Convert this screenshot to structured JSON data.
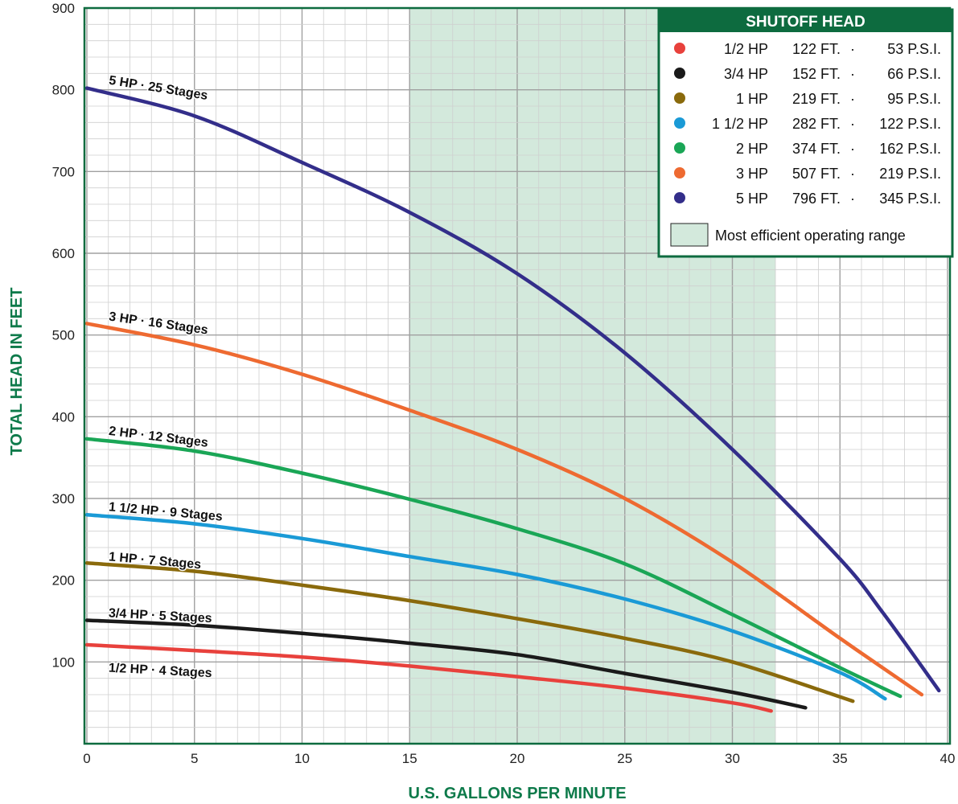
{
  "chart_data": {
    "type": "line",
    "xlabel": "U.S. GALLONS PER MINUTE",
    "ylabel": "TOTAL HEAD IN FEET",
    "xlim": [
      0,
      40
    ],
    "ylim": [
      0,
      900
    ],
    "xticks": [
      0,
      5,
      10,
      15,
      20,
      25,
      30,
      35,
      40
    ],
    "yticks": [
      100,
      200,
      300,
      400,
      500,
      600,
      700,
      800,
      900
    ],
    "grid": true,
    "efficient_range": {
      "x": [
        15,
        32
      ],
      "label": "Most efficient operating range",
      "color": "#d3e9dc"
    },
    "legend": {
      "title": "SHUTOFF HEAD",
      "placement": "top-right",
      "entries": [
        {
          "hp": "1/2 HP",
          "ft": "122 FT.",
          "sep": "·",
          "psi": "53 P.S.I.",
          "color": "#e8413c"
        },
        {
          "hp": "3/4 HP",
          "ft": "152 FT.",
          "sep": "·",
          "psi": "66 P.S.I.",
          "color": "#1a1a1a"
        },
        {
          "hp": "1 HP",
          "ft": "219 FT.",
          "sep": "·",
          "psi": "95 P.S.I.",
          "color": "#8a6a0c"
        },
        {
          "hp": "1 1/2 HP",
          "ft": "282 FT.",
          "sep": "·",
          "psi": "122 P.S.I.",
          "color": "#1a9ad6"
        },
        {
          "hp": "2 HP",
          "ft": "374 FT.",
          "sep": "·",
          "psi": "162 P.S.I.",
          "color": "#1aa656"
        },
        {
          "hp": "3 HP",
          "ft": "507 FT.",
          "sep": "·",
          "psi": "219 P.S.I.",
          "color": "#ee6a31"
        },
        {
          "hp": "5 HP",
          "ft": "796 FT.",
          "sep": "·",
          "psi": "345 P.S.I.",
          "color": "#332e8a"
        }
      ]
    },
    "series": [
      {
        "name": "1/2 HP · 4 Stages",
        "color": "#e8413c",
        "label_at": [
          1,
          88
        ],
        "label_angle": 3,
        "points": [
          [
            0,
            121
          ],
          [
            5,
            114
          ],
          [
            10,
            106
          ],
          [
            15,
            95
          ],
          [
            20,
            82
          ],
          [
            25,
            68
          ],
          [
            30,
            50
          ],
          [
            31.8,
            40
          ]
        ]
      },
      {
        "name": "3/4 HP · 5 Stages",
        "color": "#1a1a1a",
        "label_at": [
          1,
          155
        ],
        "label_angle": 3,
        "points": [
          [
            0,
            151
          ],
          [
            5,
            145
          ],
          [
            10,
            135
          ],
          [
            15,
            123
          ],
          [
            20,
            109
          ],
          [
            25,
            86
          ],
          [
            30,
            63
          ],
          [
            33.4,
            44
          ]
        ]
      },
      {
        "name": "1 HP · 7 Stages",
        "color": "#8a6a0c",
        "label_at": [
          1,
          224
        ],
        "label_angle": 5,
        "points": [
          [
            0,
            221
          ],
          [
            5,
            211
          ],
          [
            10,
            194
          ],
          [
            15,
            175
          ],
          [
            20,
            153
          ],
          [
            25,
            129
          ],
          [
            30,
            100
          ],
          [
            35.6,
            52
          ]
        ]
      },
      {
        "name": "1 1/2 HP · 9 Stages",
        "color": "#1a9ad6",
        "label_at": [
          1,
          285
        ],
        "label_angle": 5,
        "points": [
          [
            0,
            280
          ],
          [
            5,
            269
          ],
          [
            10,
            251
          ],
          [
            15,
            229
          ],
          [
            20,
            207
          ],
          [
            25,
            177
          ],
          [
            30,
            138
          ],
          [
            35,
            87
          ],
          [
            37.1,
            55
          ]
        ]
      },
      {
        "name": "2 HP · 12 Stages",
        "color": "#1aa656",
        "label_at": [
          1,
          378
        ],
        "label_angle": 7,
        "points": [
          [
            0,
            373
          ],
          [
            5,
            358
          ],
          [
            10,
            331
          ],
          [
            15,
            299
          ],
          [
            20,
            263
          ],
          [
            25,
            220
          ],
          [
            30,
            158
          ],
          [
            35,
            93
          ],
          [
            37.8,
            58
          ]
        ]
      },
      {
        "name": "3 HP · 16 Stages",
        "color": "#ee6a31",
        "label_at": [
          1,
          518
        ],
        "label_angle": 8,
        "points": [
          [
            0,
            514
          ],
          [
            5,
            488
          ],
          [
            10,
            452
          ],
          [
            15,
            408
          ],
          [
            20,
            360
          ],
          [
            25,
            300
          ],
          [
            30,
            222
          ],
          [
            35,
            129
          ],
          [
            38.8,
            60
          ]
        ]
      },
      {
        "name": "5 HP · 25 Stages",
        "color": "#332e8a",
        "label_at": [
          1,
          807
        ],
        "label_angle": 9,
        "points": [
          [
            0,
            802
          ],
          [
            5,
            768
          ],
          [
            10,
            711
          ],
          [
            15,
            650
          ],
          [
            20,
            575
          ],
          [
            25,
            478
          ],
          [
            30,
            360
          ],
          [
            35,
            226
          ],
          [
            37,
            160
          ],
          [
            39.6,
            65
          ]
        ]
      }
    ]
  }
}
